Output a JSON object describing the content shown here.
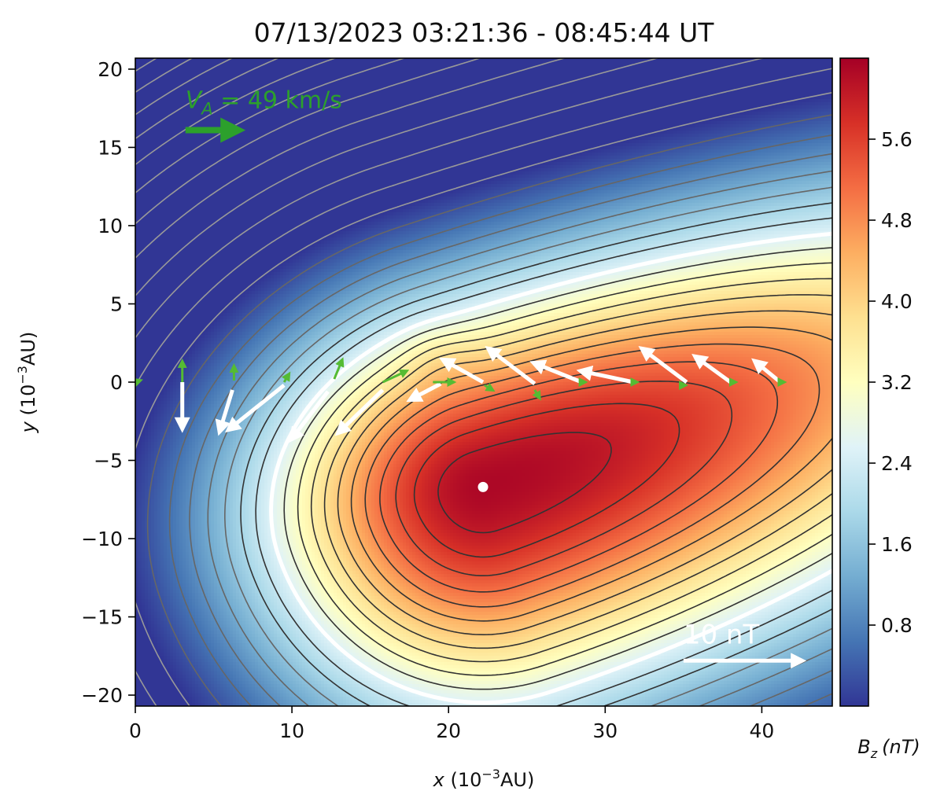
{
  "chart_data": {
    "type": "heatmap",
    "title": "07/13/2023 03:21:36 - 08:45:44 UT",
    "xlabel": {
      "var": "x",
      "unit": "(10",
      "exp": "−3",
      "unit_end": "AU)"
    },
    "ylabel": {
      "var": "y",
      "unit": "(10",
      "exp": "−3",
      "unit_end": "AU)"
    },
    "colorbar_label": {
      "var": "B",
      "sub": "z",
      "unit": "(nT)"
    },
    "xlim": [
      0,
      44.5
    ],
    "ylim": [
      -20.7,
      20.7
    ],
    "x_ticks": [
      0,
      10,
      20,
      30,
      40
    ],
    "x_tick_labels": [
      "0",
      "10",
      "20",
      "30",
      "40"
    ],
    "y_ticks": [
      20,
      15,
      10,
      5,
      0,
      -5,
      -10,
      -15,
      -20
    ],
    "y_tick_labels": [
      "20",
      "15",
      "10",
      "5",
      "0",
      "−5",
      "−10",
      "−15",
      "−20"
    ],
    "colorbar_range": [
      0.0,
      6.4
    ],
    "colorbar_ticks": [
      5.6,
      4.8,
      4.0,
      3.2,
      2.4,
      1.6,
      0.8
    ],
    "colorbar_tick_labels": [
      "5.6",
      "4.8",
      "4.0",
      "3.2",
      "2.4",
      "1.6",
      "0.8"
    ],
    "colormap": [
      "#313695",
      "#4575b4",
      "#74add1",
      "#abd9e9",
      "#e0f3f8",
      "#ffffbf",
      "#fee090",
      "#fdae61",
      "#f46d43",
      "#d73027",
      "#a50026"
    ],
    "bz_peak": 6.3,
    "bz_peak_location": {
      "x": 22.2,
      "y": -6.7
    },
    "boundary_contour_color": "#ffffff",
    "contour_color": "#333333",
    "velocity_annotation": {
      "var": "V",
      "sub": "A",
      "text": " = 49 km/s",
      "color": "#2ca02c",
      "position": {
        "x": 3.2,
        "y": 16.1
      },
      "length": 3.2
    },
    "field_scale_annotation": {
      "text": "10 nT",
      "color": "#ffffff",
      "position": {
        "x": 35.0,
        "y": -17.8
      },
      "length": 7.5
    },
    "field_vectors": [
      {
        "x": 3.0,
        "y": 0.0,
        "dx": 0.0,
        "dy": -2.9
      },
      {
        "x": 6.2,
        "y": -0.5,
        "dx": -0.8,
        "dy": -2.6
      },
      {
        "x": 9.5,
        "y": -0.2,
        "dx": -3.5,
        "dy": -2.8
      },
      {
        "x": 12.3,
        "y": -0.6,
        "dx": -2.3,
        "dy": -3.0
      },
      {
        "x": 15.8,
        "y": -0.5,
        "dx": -2.8,
        "dy": -2.7
      },
      {
        "x": 19.5,
        "y": -0.1,
        "dx": -1.9,
        "dy": -1.0
      },
      {
        "x": 22.2,
        "y": 0.0,
        "dx": -2.5,
        "dy": 1.4
      },
      {
        "x": 25.5,
        "y": -0.1,
        "dx": -2.9,
        "dy": 2.2
      },
      {
        "x": 28.5,
        "y": 0.0,
        "dx": -3.0,
        "dy": 1.2
      },
      {
        "x": 31.8,
        "y": 0.0,
        "dx": -3.3,
        "dy": 0.7
      },
      {
        "x": 35.2,
        "y": 0.0,
        "dx": -2.8,
        "dy": 2.1
      },
      {
        "x": 38.0,
        "y": 0.0,
        "dx": -2.2,
        "dy": 1.6
      },
      {
        "x": 41.3,
        "y": -0.1,
        "dx": -1.7,
        "dy": 1.4
      }
    ],
    "velocity_vectors": [
      {
        "x": 0.0,
        "y": 0.0,
        "dx": 0.3,
        "dy": 0.1
      },
      {
        "x": 3.0,
        "y": 0.0,
        "dx": 0.0,
        "dy": 1.3
      },
      {
        "x": 6.3,
        "y": 0.1,
        "dx": 0.0,
        "dy": 0.9
      },
      {
        "x": 9.5,
        "y": 0.0,
        "dx": 0.3,
        "dy": 0.5
      },
      {
        "x": 12.7,
        "y": 0.2,
        "dx": 0.5,
        "dy": 1.2
      },
      {
        "x": 15.8,
        "y": 0.0,
        "dx": 1.5,
        "dy": 0.7
      },
      {
        "x": 19.0,
        "y": 0.0,
        "dx": 1.3,
        "dy": 0.0
      },
      {
        "x": 22.3,
        "y": -0.2,
        "dx": 0.5,
        "dy": -0.3
      },
      {
        "x": 25.5,
        "y": -0.5,
        "dx": 0.3,
        "dy": -0.5
      },
      {
        "x": 28.6,
        "y": 0.0,
        "dx": 0.1,
        "dy": 0.0
      },
      {
        "x": 31.9,
        "y": 0.0,
        "dx": 0.1,
        "dy": 0.0
      },
      {
        "x": 35.0,
        "y": -0.2,
        "dx": 0.1,
        "dy": 0.0
      },
      {
        "x": 38.2,
        "y": 0.0,
        "dx": 0.1,
        "dy": 0.0
      },
      {
        "x": 41.3,
        "y": 0.0,
        "dx": 0.1,
        "dy": 0.0
      }
    ]
  }
}
